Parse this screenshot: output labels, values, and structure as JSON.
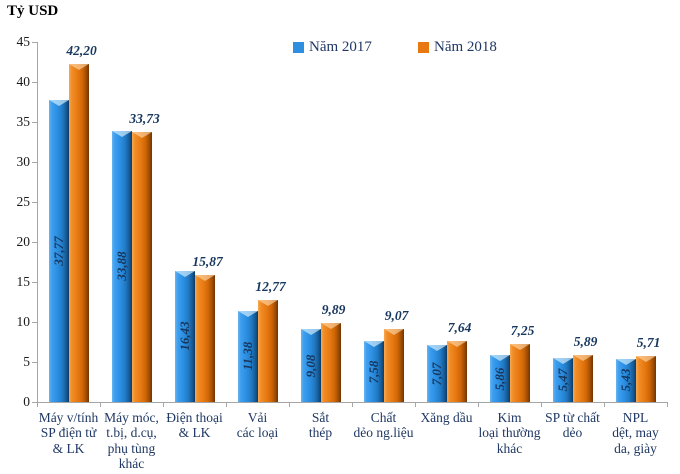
{
  "title": "Tỷ USD",
  "legend": {
    "items": [
      {
        "label": "Năm 2017",
        "color": "#2e8fe0"
      },
      {
        "label": "Năm 2018",
        "color": "#e87812"
      }
    ]
  },
  "colors": {
    "series_2017": "#2e8fe0",
    "series_2018": "#e87812",
    "axis_line": "#a6a6a6",
    "category_text": "#1f3864",
    "value_text": "#17375e",
    "tick_text": "#1a1a1a"
  },
  "chart_data": {
    "type": "bar",
    "title": "Tỷ USD",
    "ylabel": "Tỷ USD",
    "xlabel": "",
    "ylim": [
      0,
      45
    ],
    "ytick_step": 5,
    "grid": false,
    "legend_position": "top-center",
    "decimal_separator": ",",
    "categories": [
      "Máy v/tính\nSP điện tử\n& LK",
      "Máy móc,\nt.bị, d.cụ,\nphụ tùng\nkhác",
      "Điện thoại\n& LK",
      "Vải\ncác loại",
      "Sắt\nthép",
      "Chất\ndẻo ng.liệu",
      "Xăng dầu",
      "Kim\nloại thường\nkhác",
      "SP từ chất\ndẻo",
      "NPL\ndệt, may\nda, giày"
    ],
    "series": [
      {
        "name": "Năm 2017",
        "color": "#2e8fe0",
        "values": [
          37.77,
          33.88,
          16.43,
          11.38,
          9.08,
          7.58,
          7.07,
          5.86,
          5.47,
          5.43
        ]
      },
      {
        "name": "Năm 2018",
        "color": "#e87812",
        "values": [
          42.2,
          33.73,
          15.87,
          12.77,
          9.89,
          9.07,
          7.64,
          7.25,
          5.89,
          5.71
        ]
      }
    ]
  }
}
